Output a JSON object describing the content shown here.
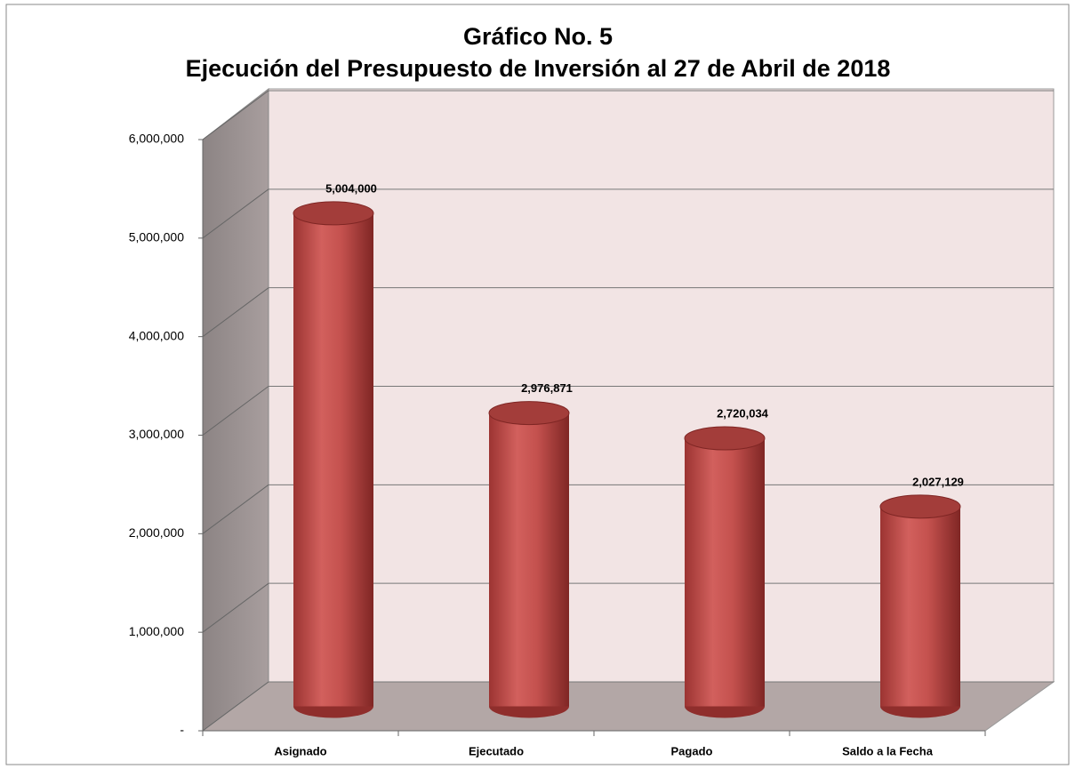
{
  "chart_data": {
    "type": "bar3d",
    "title": "Gráfico No. 5",
    "subtitle": "Ejecución del Presupuesto de Inversión al 27 de Abril de 2018",
    "categories": [
      "Asignado",
      "Ejecutado",
      "Pagado",
      "Saldo a la Fecha"
    ],
    "values": [
      5004000,
      2976871,
      2720034,
      2027129
    ],
    "value_labels": [
      "5,004,000",
      "2,976,871",
      "2,720,034",
      "2,027,129"
    ],
    "color": "#c0504d",
    "ylim": [
      0,
      6000000
    ],
    "yticks": [
      {
        "value": 0,
        "label": "-"
      },
      {
        "value": 1000000,
        "label": "1,000,000"
      },
      {
        "value": 2000000,
        "label": "2,000,000"
      },
      {
        "value": 3000000,
        "label": "3,000,000"
      },
      {
        "value": 4000000,
        "label": "4,000,000"
      },
      {
        "value": 5000000,
        "label": "5,000,000"
      },
      {
        "value": 6000000,
        "label": "6,000,000"
      }
    ],
    "grid": true
  }
}
